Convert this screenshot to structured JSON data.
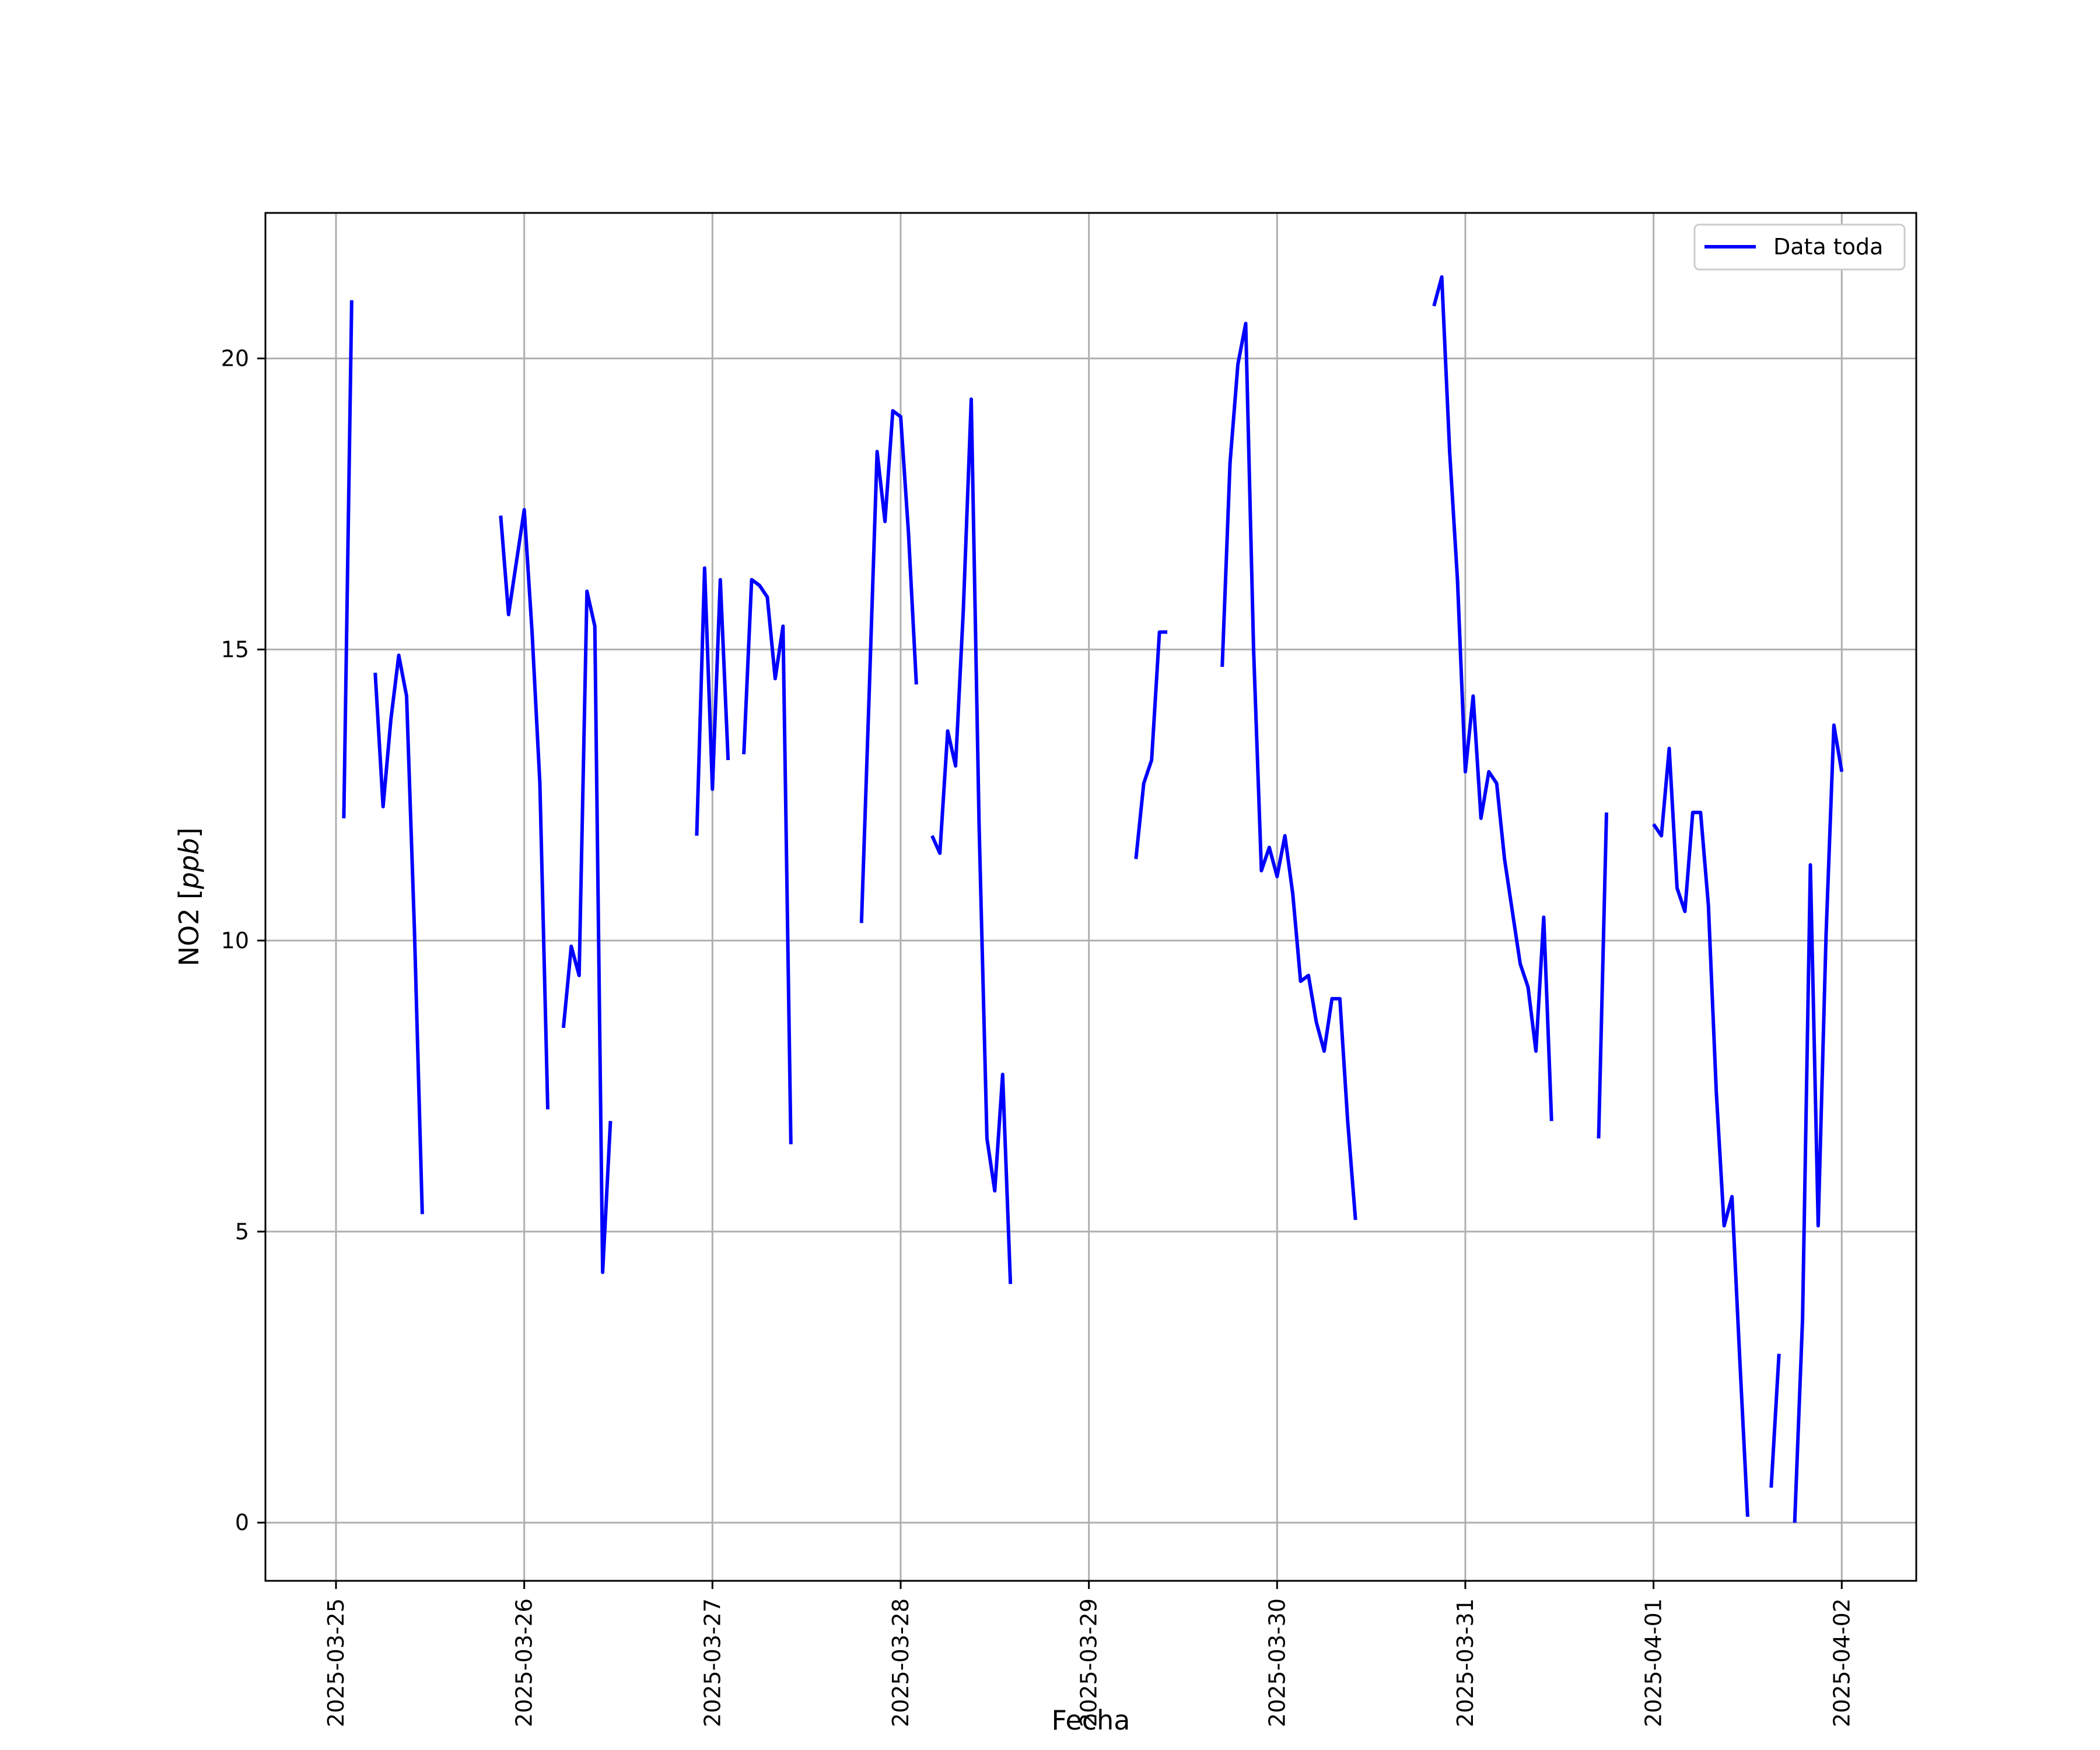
{
  "chart_data": {
    "type": "line",
    "xlabel": "Fecha",
    "ylabel_main": "NO2 [",
    "ylabel_unit": "ppb",
    "ylabel_end": "]",
    "ylim": [
      -1,
      22.5
    ],
    "xlim": [
      "2025-03-24 15:00",
      "2025-04-02 09:30"
    ],
    "x_ticks": [
      "2025-03-25",
      "2025-03-26",
      "2025-03-27",
      "2025-03-28",
      "2025-03-29",
      "2025-03-30",
      "2025-03-31",
      "2025-04-01",
      "2025-04-02"
    ],
    "y_ticks": [
      "0",
      "5",
      "10",
      "15",
      "20"
    ],
    "grid": true,
    "legend_position": "top-right",
    "colors": {
      "line": "#0000ff",
      "grid": "#b0b0b0",
      "frame": "#000000"
    },
    "series": [
      {
        "name": "Data toda",
        "segments": [
          [
            [
              "2025-03-25 01:00",
              12.1
            ],
            [
              "2025-03-25 02:00",
              21.0
            ]
          ],
          [
            [
              "2025-03-25 05:00",
              14.6
            ],
            [
              "2025-03-25 06:00",
              12.3
            ],
            [
              "2025-03-25 07:00",
              13.8
            ],
            [
              "2025-03-25 08:00",
              14.9
            ],
            [
              "2025-03-25 09:00",
              14.2
            ],
            [
              "2025-03-25 10:00",
              10.2
            ],
            [
              "2025-03-25 11:00",
              5.3
            ]
          ],
          [
            [
              "2025-03-25 21:00",
              17.3
            ],
            [
              "2025-03-25 22:00",
              15.6
            ],
            [
              "2025-03-25 23:00",
              16.5
            ],
            [
              "2025-03-26 00:00",
              17.4
            ],
            [
              "2025-03-26 01:00",
              15.3
            ],
            [
              "2025-03-26 02:00",
              12.7
            ],
            [
              "2025-03-26 03:00",
              7.1
            ]
          ],
          [
            [
              "2025-03-26 05:00",
              8.5
            ],
            [
              "2025-03-26 06:00",
              9.9
            ],
            [
              "2025-03-26 07:00",
              9.4
            ],
            [
              "2025-03-26 08:00",
              16.0
            ],
            [
              "2025-03-26 09:00",
              15.4
            ],
            [
              "2025-03-26 10:00",
              4.3
            ],
            [
              "2025-03-26 11:00",
              6.9
            ]
          ],
          [
            [
              "2025-03-26 22:00",
              11.8
            ],
            [
              "2025-03-26 23:00",
              16.4
            ],
            [
              "2025-03-27 00:00",
              12.6
            ],
            [
              "2025-03-27 01:00",
              16.2
            ],
            [
              "2025-03-27 02:00",
              13.1
            ]
          ],
          [
            [
              "2025-03-27 04:00",
              13.2
            ],
            [
              "2025-03-27 05:00",
              16.2
            ],
            [
              "2025-03-27 06:00",
              16.1
            ],
            [
              "2025-03-27 07:00",
              15.9
            ],
            [
              "2025-03-27 08:00",
              14.5
            ],
            [
              "2025-03-27 09:00",
              15.4
            ],
            [
              "2025-03-27 10:00",
              6.5
            ]
          ],
          [
            [
              "2025-03-27 19:00",
              10.3
            ],
            [
              "2025-03-27 20:00",
              14.3
            ],
            [
              "2025-03-27 21:00",
              18.4
            ],
            [
              "2025-03-27 22:00",
              17.2
            ],
            [
              "2025-03-27 23:00",
              19.1
            ],
            [
              "2025-03-28 00:00",
              19.0
            ],
            [
              "2025-03-28 01:00",
              17.0
            ],
            [
              "2025-03-28 02:00",
              14.4
            ]
          ],
          [
            [
              "2025-03-28 04:00",
              11.8
            ],
            [
              "2025-03-28 05:00",
              11.5
            ],
            [
              "2025-03-28 06:00",
              13.6
            ],
            [
              "2025-03-28 07:00",
              13.0
            ],
            [
              "2025-03-28 08:00",
              15.7
            ],
            [
              "2025-03-28 09:00",
              19.3
            ],
            [
              "2025-03-28 10:00",
              12.0
            ],
            [
              "2025-03-28 11:00",
              6.6
            ],
            [
              "2025-03-28 12:00",
              5.7
            ],
            [
              "2025-03-28 13:00",
              7.7
            ],
            [
              "2025-03-28 14:00",
              4.1
            ]
          ],
          [
            [
              "2025-03-29 06:00",
              11.4
            ],
            [
              "2025-03-29 07:00",
              12.7
            ],
            [
              "2025-03-29 08:00",
              13.1
            ],
            [
              "2025-03-29 09:00",
              15.3
            ],
            [
              "2025-03-29 10:00",
              15.3
            ]
          ],
          [
            [
              "2025-03-29 17:00",
              14.7
            ],
            [
              "2025-03-29 18:00",
              18.2
            ],
            [
              "2025-03-29 19:00",
              19.9
            ],
            [
              "2025-03-29 20:00",
              20.6
            ],
            [
              "2025-03-29 21:00",
              15.0
            ],
            [
              "2025-03-29 22:00",
              11.2
            ],
            [
              "2025-03-29 23:00",
              11.6
            ],
            [
              "2025-03-30 00:00",
              11.1
            ],
            [
              "2025-03-30 01:00",
              11.8
            ],
            [
              "2025-03-30 02:00",
              10.8
            ],
            [
              "2025-03-30 03:00",
              9.3
            ],
            [
              "2025-03-30 04:00",
              9.4
            ],
            [
              "2025-03-30 05:00",
              8.6
            ],
            [
              "2025-03-30 06:00",
              8.1
            ],
            [
              "2025-03-30 07:00",
              9.0
            ],
            [
              "2025-03-30 08:00",
              9.0
            ],
            [
              "2025-03-30 09:00",
              6.9
            ],
            [
              "2025-03-30 10:00",
              5.2
            ]
          ],
          [
            [
              "2025-03-30 20:00",
              20.9
            ],
            [
              "2025-03-30 21:00",
              21.4
            ],
            [
              "2025-03-30 22:00",
              18.4
            ],
            [
              "2025-03-30 23:00",
              16.2
            ],
            [
              "2025-03-31 00:00",
              12.9
            ],
            [
              "2025-03-31 01:00",
              14.2
            ],
            [
              "2025-03-31 02:00",
              12.1
            ],
            [
              "2025-03-31 03:00",
              12.9
            ],
            [
              "2025-03-31 04:00",
              12.7
            ],
            [
              "2025-03-31 05:00",
              11.4
            ],
            [
              "2025-03-31 06:00",
              10.5
            ],
            [
              "2025-03-31 07:00",
              9.6
            ],
            [
              "2025-03-31 08:00",
              9.2
            ],
            [
              "2025-03-31 09:00",
              8.1
            ],
            [
              "2025-03-31 10:00",
              10.4
            ],
            [
              "2025-03-31 11:00",
              6.9
            ]
          ],
          [
            [
              "2025-03-31 17:00",
              6.6
            ],
            [
              "2025-03-31 18:00",
              12.2
            ]
          ],
          [
            [
              "2025-04-01 00:00",
              12.0
            ],
            [
              "2025-04-01 01:00",
              11.8
            ],
            [
              "2025-04-01 02:00",
              13.3
            ],
            [
              "2025-04-01 03:00",
              10.9
            ],
            [
              "2025-04-01 04:00",
              10.5
            ],
            [
              "2025-04-01 05:00",
              12.2
            ],
            [
              "2025-04-01 06:00",
              12.2
            ],
            [
              "2025-04-01 07:00",
              10.6
            ],
            [
              "2025-04-01 08:00",
              7.4
            ],
            [
              "2025-04-01 09:00",
              5.1
            ],
            [
              "2025-04-01 10:00",
              5.6
            ],
            [
              "2025-04-01 11:00",
              2.8
            ],
            [
              "2025-04-01 12:00",
              0.1
            ]
          ],
          [
            [
              "2025-04-01 15:00",
              0.6
            ],
            [
              "2025-04-01 16:00",
              2.9
            ]
          ],
          [
            [
              "2025-04-01 18:00",
              0.0
            ],
            [
              "2025-04-01 19:00",
              3.5
            ],
            [
              "2025-04-01 20:00",
              11.3
            ],
            [
              "2025-04-01 21:00",
              5.1
            ],
            [
              "2025-04-01 22:00",
              10.1
            ],
            [
              "2025-04-01 23:00",
              13.7
            ],
            [
              "2025-04-02 00:00",
              12.9
            ]
          ]
        ]
      }
    ]
  }
}
